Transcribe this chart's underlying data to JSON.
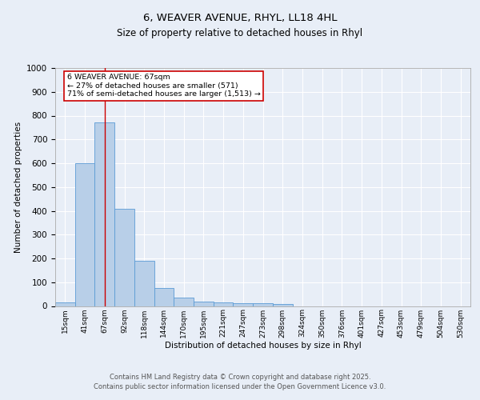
{
  "title1": "6, WEAVER AVENUE, RHYL, LL18 4HL",
  "title2": "Size of property relative to detached houses in Rhyl",
  "xlabel": "Distribution of detached houses by size in Rhyl",
  "ylabel": "Number of detached properties",
  "bar_labels": [
    "15sqm",
    "41sqm",
    "67sqm",
    "92sqm",
    "118sqm",
    "144sqm",
    "170sqm",
    "195sqm",
    "221sqm",
    "247sqm",
    "273sqm",
    "298sqm",
    "324sqm",
    "350sqm",
    "376sqm",
    "401sqm",
    "427sqm",
    "453sqm",
    "479sqm",
    "504sqm",
    "530sqm"
  ],
  "bar_values": [
    15,
    600,
    770,
    410,
    190,
    75,
    35,
    18,
    15,
    12,
    12,
    7,
    0,
    0,
    0,
    0,
    0,
    0,
    0,
    0,
    0
  ],
  "bar_color": "#b8cfe8",
  "bar_edgecolor": "#5b9bd5",
  "vline_x": 2,
  "vline_color": "#cc0000",
  "ylim": [
    0,
    1000
  ],
  "yticks": [
    0,
    100,
    200,
    300,
    400,
    500,
    600,
    700,
    800,
    900,
    1000
  ],
  "annotation_text": "6 WEAVER AVENUE: 67sqm\n← 27% of detached houses are smaller (571)\n71% of semi-detached houses are larger (1,513) →",
  "annotation_box_color": "#ffffff",
  "annotation_box_edgecolor": "#cc0000",
  "footer1": "Contains HM Land Registry data © Crown copyright and database right 2025.",
  "footer2": "Contains public sector information licensed under the Open Government Licence v3.0.",
  "bg_color": "#e8eef7",
  "plot_bg_color": "#e8eef7"
}
